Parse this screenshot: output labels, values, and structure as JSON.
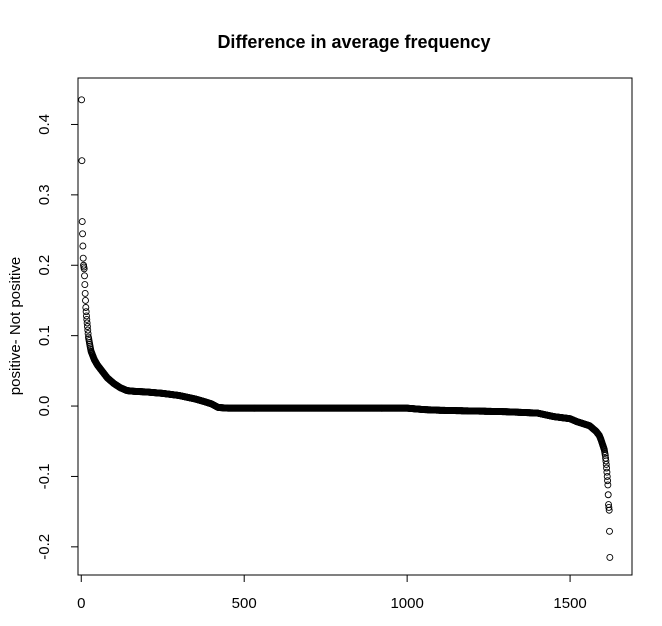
{
  "chart_data": {
    "type": "scatter",
    "title": "Difference in average frequency",
    "xlabel": "",
    "ylabel": "positive- Not positive",
    "xlim": [
      -10,
      1690
    ],
    "ylim": [
      -0.24,
      0.466
    ],
    "x_ticks": [
      0,
      500,
      1000,
      1500
    ],
    "y_ticks": [
      -0.2,
      -0.1,
      0.0,
      0.1,
      0.2,
      0.3,
      0.4
    ],
    "x_tick_labels": [
      "0",
      "500",
      "1000",
      "1500"
    ],
    "y_tick_labels": [
      "-0.2",
      "-0.1",
      "0.0",
      "0.1",
      "0.2",
      "0.3",
      "0.4"
    ],
    "grid": false,
    "legend": "none",
    "marker": "open-circle",
    "n_points": 1622,
    "x": [
      1,
      3,
      6,
      7,
      9,
      10,
      12,
      14,
      16,
      18,
      20,
      22,
      24,
      27,
      30,
      35,
      40,
      50,
      60,
      70,
      80,
      90,
      100,
      120,
      140,
      160,
      200,
      250,
      300,
      350,
      380,
      400,
      420,
      450,
      600,
      800,
      1000,
      1050,
      1100,
      1200,
      1300,
      1400,
      1450,
      1500,
      1520,
      1540,
      1560,
      1570,
      1580,
      1590,
      1595,
      1600,
      1605,
      1608,
      1610,
      1612,
      1614,
      1616,
      1618,
      1620,
      1621,
      1622
    ],
    "y": [
      0.435,
      0.262,
      0.21,
      0.2,
      0.195,
      0.185,
      0.16,
      0.14,
      0.128,
      0.118,
      0.108,
      0.098,
      0.093,
      0.085,
      0.078,
      0.072,
      0.066,
      0.058,
      0.052,
      0.046,
      0.04,
      0.036,
      0.032,
      0.026,
      0.022,
      0.021,
      0.02,
      0.018,
      0.015,
      0.01,
      0.006,
      0.003,
      -0.002,
      -0.003,
      -0.003,
      -0.003,
      -0.003,
      -0.005,
      -0.006,
      -0.007,
      -0.008,
      -0.01,
      -0.015,
      -0.018,
      -0.022,
      -0.025,
      -0.028,
      -0.032,
      -0.036,
      -0.042,
      -0.048,
      -0.055,
      -0.062,
      -0.07,
      -0.078,
      -0.088,
      -0.1,
      -0.112,
      -0.14,
      -0.148,
      -0.178,
      -0.215
    ]
  }
}
